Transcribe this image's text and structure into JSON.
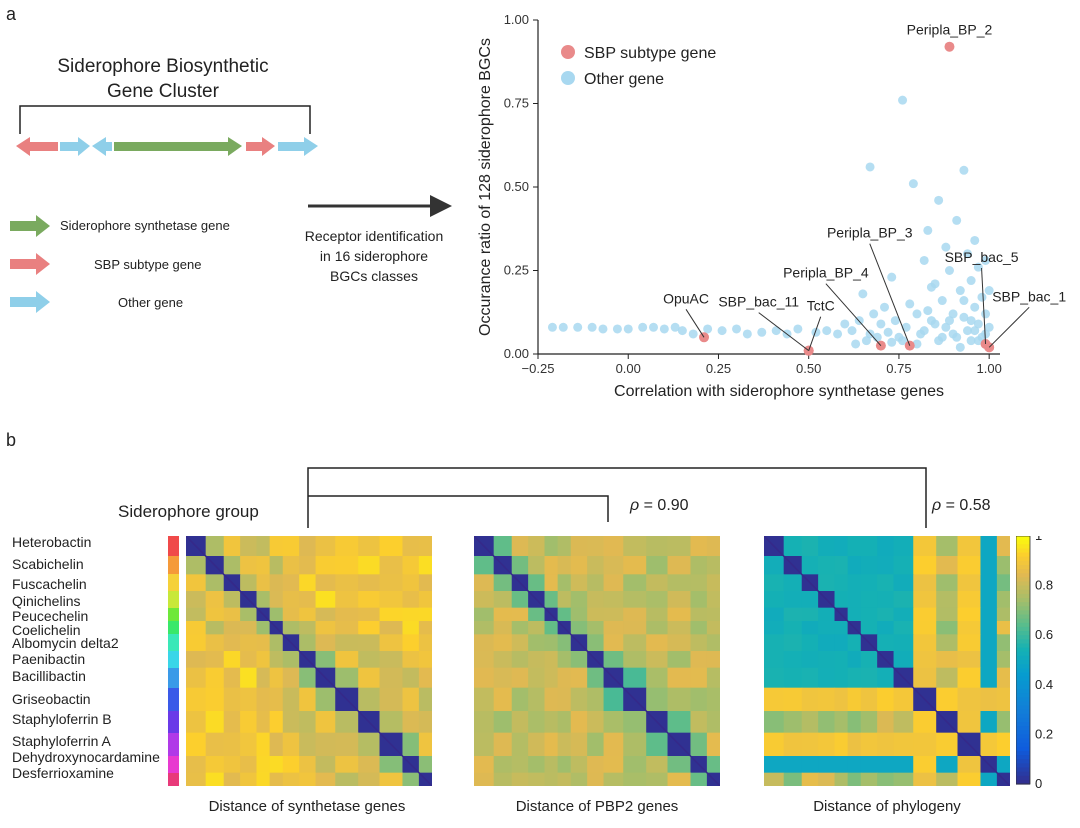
{
  "panel_a": {
    "label": "a",
    "cluster_title_line1": "Siderophore Biosynthetic",
    "cluster_title_line2": "Gene Cluster",
    "legend": [
      {
        "label": "Siderophore synthetase gene",
        "color": "#7aaa5f"
      },
      {
        "label": "SBP subtype gene",
        "color": "#e98080"
      },
      {
        "label": "Other gene",
        "color": "#8fcfe9"
      }
    ],
    "arrow_text_line1": "Receptor identification",
    "arrow_text_line2": "in 16 siderophore",
    "arrow_text_line3": "BGCs classes"
  },
  "panel_b": {
    "label": "b",
    "group_title": "Siderophore group",
    "rho_pbp2": "= 0.90",
    "rho_phylogeny": "= 0.58",
    "rho_symbol": "ρ",
    "groups": [
      {
        "name": "Heterobactin",
        "color": "#f04a4a"
      },
      {
        "name": "Scabichelin",
        "color": "#f59a3a"
      },
      {
        "name": "Fuscachelin",
        "color": "#f5d13a"
      },
      {
        "name": "Qinichelins",
        "color": "#c8e83a"
      },
      {
        "name": "Peucechelin",
        "color": "#6ee83a"
      },
      {
        "name": "Coelichelin",
        "color": "#3ae86a"
      },
      {
        "name": "Albomycin delta2",
        "color": "#3ae8b8"
      },
      {
        "name": "Paenibactin",
        "color": "#3ad6e8"
      },
      {
        "name": "Bacillibactin",
        "color": "#3a9ae8"
      },
      {
        "name": "Griseobactin",
        "color": "#3a5ae8"
      },
      {
        "name": "Staphyloferrin B",
        "color": "#6a3ae8"
      },
      {
        "name": "Staphyloferrin A",
        "color": "#b03ae8"
      },
      {
        "name": "Dehydroxynocardamine",
        "color": "#e83ad0"
      },
      {
        "name": "Desferrioxamine",
        "color": "#e83a7a"
      }
    ],
    "heatmap_titles": [
      "Distance of synthetase genes",
      "Distance of PBP2 genes",
      "Distance of phylogeny"
    ],
    "colorbar_ticks": [
      "0",
      "0.2",
      "0.4",
      "0.6",
      "0.8",
      "1"
    ]
  },
  "chart_data": {
    "type": "scatter",
    "title": "",
    "xlabel": "Correlation with siderophore synthetase genes",
    "ylabel": "Occurance ratio of 128 siderophore BGCs",
    "xlim": [
      -0.25,
      1.03
    ],
    "ylim": [
      0,
      1.0
    ],
    "xticks": [
      "−0.25",
      "0.00",
      "0.25",
      "0.50",
      "0.75",
      "1.00"
    ],
    "yticks": [
      "0.00",
      "0.25",
      "0.50",
      "0.75",
      "1.00"
    ],
    "legend_position": "top-left",
    "series": [
      {
        "name": "SBP subtype gene",
        "color": "#e98a8a",
        "points": [
          {
            "x": 0.89,
            "y": 0.92,
            "label": "Peripla_BP_2"
          },
          {
            "x": 0.78,
            "y": 0.025,
            "label": "Peripla_BP_3"
          },
          {
            "x": 0.7,
            "y": 0.025,
            "label": "Peripla_BP_4"
          },
          {
            "x": 0.5,
            "y": 0.01,
            "label": "SBP_bac_11"
          },
          {
            "x": 0.5,
            "y": 0.01,
            "label": "TctC"
          },
          {
            "x": 0.21,
            "y": 0.05,
            "label": "OpuAC"
          },
          {
            "x": 0.99,
            "y": 0.03,
            "label": "SBP_bac_5"
          },
          {
            "x": 1.0,
            "y": 0.02,
            "label": "SBP_bac_1"
          }
        ]
      },
      {
        "name": "Other gene",
        "color": "#a8d8f0",
        "points": [
          {
            "x": -0.21,
            "y": 0.08
          },
          {
            "x": -0.18,
            "y": 0.08
          },
          {
            "x": -0.14,
            "y": 0.08
          },
          {
            "x": -0.1,
            "y": 0.08
          },
          {
            "x": -0.07,
            "y": 0.075
          },
          {
            "x": -0.03,
            "y": 0.075
          },
          {
            "x": 0.0,
            "y": 0.075
          },
          {
            "x": 0.04,
            "y": 0.08
          },
          {
            "x": 0.07,
            "y": 0.08
          },
          {
            "x": 0.1,
            "y": 0.075
          },
          {
            "x": 0.13,
            "y": 0.08
          },
          {
            "x": 0.15,
            "y": 0.07
          },
          {
            "x": 0.18,
            "y": 0.06
          },
          {
            "x": 0.22,
            "y": 0.075
          },
          {
            "x": 0.26,
            "y": 0.07
          },
          {
            "x": 0.3,
            "y": 0.075
          },
          {
            "x": 0.33,
            "y": 0.06
          },
          {
            "x": 0.37,
            "y": 0.065
          },
          {
            "x": 0.41,
            "y": 0.07
          },
          {
            "x": 0.44,
            "y": 0.06
          },
          {
            "x": 0.47,
            "y": 0.075
          },
          {
            "x": 0.52,
            "y": 0.065
          },
          {
            "x": 0.55,
            "y": 0.07
          },
          {
            "x": 0.58,
            "y": 0.06
          },
          {
            "x": 0.6,
            "y": 0.09
          },
          {
            "x": 0.62,
            "y": 0.07
          },
          {
            "x": 0.64,
            "y": 0.1
          },
          {
            "x": 0.65,
            "y": 0.18
          },
          {
            "x": 0.67,
            "y": 0.06
          },
          {
            "x": 0.67,
            "y": 0.56
          },
          {
            "x": 0.68,
            "y": 0.12
          },
          {
            "x": 0.7,
            "y": 0.09
          },
          {
            "x": 0.71,
            "y": 0.14
          },
          {
            "x": 0.72,
            "y": 0.065
          },
          {
            "x": 0.73,
            "y": 0.23
          },
          {
            "x": 0.74,
            "y": 0.1
          },
          {
            "x": 0.75,
            "y": 0.05
          },
          {
            "x": 0.76,
            "y": 0.76
          },
          {
            "x": 0.77,
            "y": 0.08
          },
          {
            "x": 0.78,
            "y": 0.15
          },
          {
            "x": 0.79,
            "y": 0.51
          },
          {
            "x": 0.8,
            "y": 0.12
          },
          {
            "x": 0.81,
            "y": 0.06
          },
          {
            "x": 0.82,
            "y": 0.28
          },
          {
            "x": 0.83,
            "y": 0.37
          },
          {
            "x": 0.84,
            "y": 0.1
          },
          {
            "x": 0.85,
            "y": 0.21
          },
          {
            "x": 0.86,
            "y": 0.46
          },
          {
            "x": 0.86,
            "y": 0.04
          },
          {
            "x": 0.87,
            "y": 0.16
          },
          {
            "x": 0.88,
            "y": 0.32
          },
          {
            "x": 0.88,
            "y": 0.08
          },
          {
            "x": 0.89,
            "y": 0.25
          },
          {
            "x": 0.9,
            "y": 0.12
          },
          {
            "x": 0.9,
            "y": 0.06
          },
          {
            "x": 0.91,
            "y": 0.4
          },
          {
            "x": 0.92,
            "y": 0.19
          },
          {
            "x": 0.92,
            "y": 0.02
          },
          {
            "x": 0.93,
            "y": 0.11
          },
          {
            "x": 0.93,
            "y": 0.55
          },
          {
            "x": 0.94,
            "y": 0.3
          },
          {
            "x": 0.94,
            "y": 0.07
          },
          {
            "x": 0.95,
            "y": 0.22
          },
          {
            "x": 0.95,
            "y": 0.04
          },
          {
            "x": 0.96,
            "y": 0.14
          },
          {
            "x": 0.96,
            "y": 0.34
          },
          {
            "x": 0.97,
            "y": 0.09
          },
          {
            "x": 0.97,
            "y": 0.26
          },
          {
            "x": 0.98,
            "y": 0.17
          },
          {
            "x": 0.98,
            "y": 0.05
          },
          {
            "x": 0.99,
            "y": 0.12
          },
          {
            "x": 0.99,
            "y": 0.28
          },
          {
            "x": 1.0,
            "y": 0.08
          },
          {
            "x": 1.0,
            "y": 0.19
          },
          {
            "x": 0.85,
            "y": 0.09
          },
          {
            "x": 0.83,
            "y": 0.13
          },
          {
            "x": 0.8,
            "y": 0.03
          },
          {
            "x": 0.76,
            "y": 0.04
          },
          {
            "x": 0.73,
            "y": 0.035
          },
          {
            "x": 0.69,
            "y": 0.05
          },
          {
            "x": 0.66,
            "y": 0.04
          },
          {
            "x": 0.63,
            "y": 0.03
          },
          {
            "x": 0.91,
            "y": 0.05
          },
          {
            "x": 0.96,
            "y": 0.07
          },
          {
            "x": 0.87,
            "y": 0.05
          },
          {
            "x": 0.93,
            "y": 0.16
          },
          {
            "x": 0.89,
            "y": 0.1
          },
          {
            "x": 0.95,
            "y": 0.1
          },
          {
            "x": 0.97,
            "y": 0.04
          },
          {
            "x": 0.99,
            "y": 0.06
          },
          {
            "x": 0.84,
            "y": 0.2
          },
          {
            "x": 0.82,
            "y": 0.07
          }
        ]
      }
    ]
  }
}
